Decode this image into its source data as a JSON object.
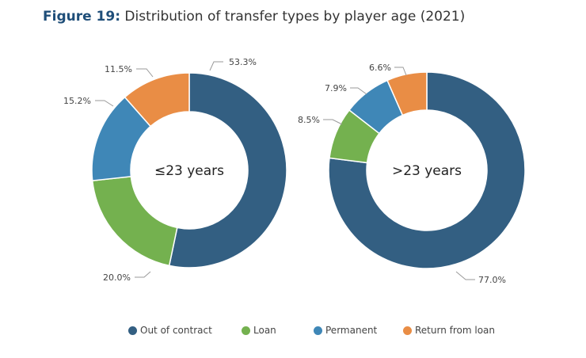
{
  "title": {
    "figure_label": "Figure 19:",
    "text": "Distribution of transfer types by player age (2021)"
  },
  "colors": {
    "title_accent": "#1f4e79",
    "out_of_contract": "#335f82",
    "loan": "#74b14f",
    "permanent": "#3f87b7",
    "return_from_loan": "#e98d45"
  },
  "chart_data": [
    {
      "type": "pie",
      "variant": "donut",
      "center_label": "≤23 years",
      "categories": [
        "Out of contract",
        "Loan",
        "Permanent",
        "Return from loan"
      ],
      "values": [
        53.3,
        20.0,
        15.2,
        11.5
      ],
      "value_labels": [
        "53.3%",
        "20.0%",
        "15.2%",
        "11.5%"
      ],
      "start": "12 o'clock",
      "direction": "clockwise"
    },
    {
      "type": "pie",
      "variant": "donut",
      "center_label": ">23 years",
      "categories": [
        "Out of contract",
        "Loan",
        "Permanent",
        "Return from loan"
      ],
      "values": [
        77.0,
        8.5,
        7.9,
        6.6
      ],
      "value_labels": [
        "77.0%",
        "8.5%",
        "7.9%",
        "6.6%"
      ],
      "start": "12 o'clock",
      "direction": "clockwise"
    }
  ],
  "legend": {
    "placement": "bottom-center",
    "items": [
      {
        "label": "Out of contract",
        "color": "#335f82"
      },
      {
        "label": "Loan",
        "color": "#74b14f"
      },
      {
        "label": "Permanent",
        "color": "#3f87b7"
      },
      {
        "label": "Return from loan",
        "color": "#e98d45"
      }
    ]
  }
}
